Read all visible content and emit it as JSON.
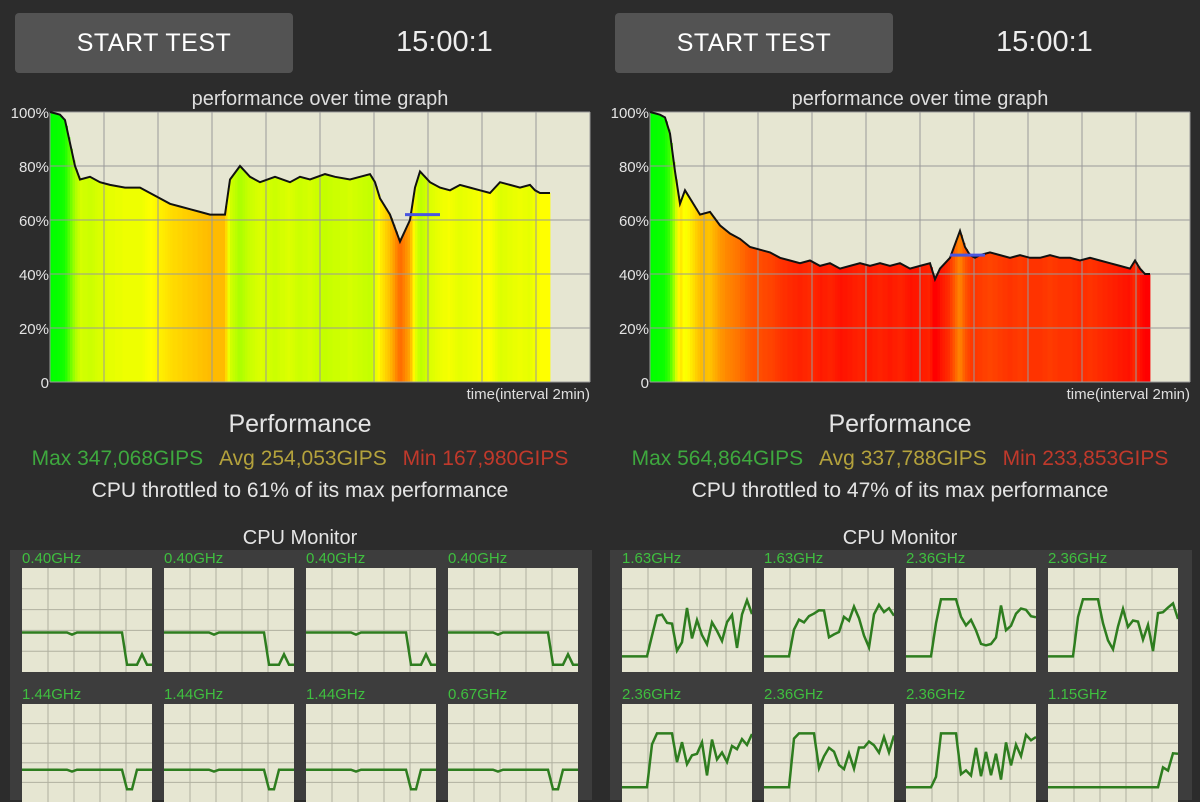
{
  "panels": [
    {
      "start_label": "START TEST",
      "timer": "15:00:1",
      "graph": {
        "title": "performance over time graph",
        "y_ticks": [
          "100%",
          "80%",
          "60%",
          "40%",
          "20%",
          "0"
        ],
        "x_label": "time(interval 2min)",
        "colors": {
          "plot_bg": "#e6e6d2",
          "grid": "#9a9a9a",
          "line": "#111111",
          "marker": "#4a56e0"
        }
      },
      "performance_title": "Performance",
      "max": "Max 347,068GIPS",
      "avg": "Avg 254,053GIPS",
      "min": "Min 167,980GIPS",
      "throttle": "CPU throttled to 61% of its max performance",
      "cpu_monitor_title": "CPU Monitor",
      "cores": [
        {
          "freq": "0.40GHz"
        },
        {
          "freq": "0.40GHz"
        },
        {
          "freq": "0.40GHz"
        },
        {
          "freq": "0.40GHz"
        },
        {
          "freq": "1.44GHz"
        },
        {
          "freq": "1.44GHz"
        },
        {
          "freq": "1.44GHz"
        },
        {
          "freq": "0.67GHz"
        }
      ]
    },
    {
      "start_label": "START TEST",
      "timer": "15:00:1",
      "graph": {
        "title": "performance over time graph",
        "y_ticks": [
          "100%",
          "80%",
          "60%",
          "40%",
          "20%",
          "0"
        ],
        "x_label": "time(interval 2min)",
        "colors": {
          "plot_bg": "#e6e6d2",
          "grid": "#9a9a9a",
          "line": "#111111",
          "marker": "#4a56e0"
        }
      },
      "performance_title": "Performance",
      "max": "Max 564,864GIPS",
      "avg": "Avg 337,788GIPS",
      "min": "Min 233,853GIPS",
      "throttle": "CPU throttled to 47% of its max performance",
      "cpu_monitor_title": "CPU Monitor",
      "cores": [
        {
          "freq": "1.63GHz"
        },
        {
          "freq": "1.63GHz"
        },
        {
          "freq": "2.36GHz"
        },
        {
          "freq": "2.36GHz"
        },
        {
          "freq": "2.36GHz"
        },
        {
          "freq": "2.36GHz"
        },
        {
          "freq": "2.36GHz"
        },
        {
          "freq": "1.15GHz"
        }
      ]
    }
  ],
  "chart_data": [
    {
      "type": "area",
      "title": "performance over time graph",
      "xlabel": "time(interval 2min)",
      "ylabel": "",
      "ylim": [
        0,
        100
      ],
      "xlim": [
        0,
        100
      ],
      "grid": true,
      "series": [
        {
          "x": [
            0,
            2,
            3,
            5,
            6,
            8,
            10,
            12,
            15,
            18,
            20,
            22,
            24,
            26,
            28,
            30,
            32,
            33,
            34,
            35,
            36,
            38,
            40,
            42,
            45,
            48,
            50,
            52,
            55,
            57,
            60,
            62,
            64,
            65,
            66,
            68,
            70,
            72,
            73,
            74,
            75,
            76,
            78,
            80,
            82,
            84,
            86,
            88,
            90,
            92,
            94,
            96,
            97,
            98,
            100
          ],
          "y": [
            100,
            99,
            97,
            80,
            75,
            76,
            74,
            73,
            72,
            72,
            70,
            68,
            66,
            65,
            64,
            63,
            62,
            62,
            62,
            62,
            75,
            80,
            76,
            74,
            76,
            74,
            76,
            75,
            77,
            76,
            75,
            76,
            77,
            74,
            68,
            62,
            52,
            60,
            72,
            78,
            76,
            74,
            72,
            71,
            73,
            72,
            71,
            70,
            74,
            73,
            72,
            73,
            71,
            70,
            70
          ]
        }
      ],
      "annotations": [
        {
          "type": "hline",
          "y": 62,
          "x_range": [
            71,
            78
          ]
        }
      ]
    },
    {
      "type": "area",
      "title": "performance over time graph",
      "xlabel": "time(interval 2min)",
      "ylabel": "",
      "ylim": [
        0,
        100
      ],
      "xlim": [
        0,
        100
      ],
      "grid": true,
      "series": [
        {
          "x": [
            0,
            2,
            3,
            4,
            5,
            6,
            7,
            8,
            9,
            10,
            12,
            14,
            16,
            18,
            20,
            22,
            24,
            26,
            28,
            30,
            32,
            34,
            36,
            38,
            40,
            42,
            44,
            46,
            48,
            50,
            52,
            54,
            56,
            57,
            58,
            60,
            62,
            63,
            64,
            65,
            66,
            68,
            70,
            72,
            74,
            76,
            78,
            80,
            82,
            84,
            86,
            88,
            90,
            92,
            94,
            96,
            97,
            98,
            99,
            100
          ],
          "y": [
            100,
            99,
            98,
            92,
            78,
            66,
            71,
            68,
            65,
            62,
            63,
            58,
            55,
            53,
            50,
            49,
            48,
            46,
            45,
            44,
            45,
            43,
            44,
            42,
            43,
            44,
            43,
            44,
            43,
            44,
            42,
            43,
            44,
            38,
            42,
            46,
            56,
            50,
            47,
            46,
            47,
            48,
            47,
            46,
            47,
            46,
            46,
            47,
            46,
            46,
            45,
            46,
            45,
            44,
            43,
            42,
            45,
            42,
            40,
            40
          ]
        }
      ],
      "annotations": [
        {
          "type": "hline",
          "y": 47,
          "x_range": [
            60,
            67
          ]
        }
      ]
    }
  ]
}
